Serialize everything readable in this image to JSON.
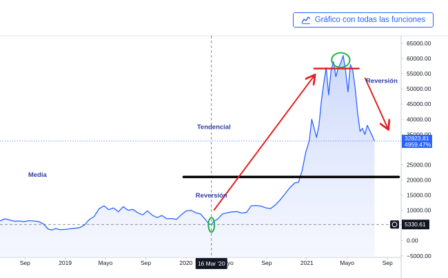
{
  "header": {
    "full_chart_button": "Gráfico con todas las funciones"
  },
  "chart_data": {
    "type": "area",
    "y_ticks": [
      65000,
      60000,
      55000,
      50000,
      45000,
      40000,
      35000,
      25000,
      20000,
      15000,
      10000,
      5000,
      0,
      -5000
    ],
    "y_tick_labels": [
      "65000.00",
      "60000.00",
      "55000.00",
      "50000.00",
      "45000.00",
      "40000.00",
      "35000.00",
      "25000.00",
      "20000.00",
      "15000.00",
      "10000.00",
      "5000.00",
      "0.00",
      "−5000.00"
    ],
    "ylim": [
      -5500,
      67500
    ],
    "x_ticks": [
      {
        "t": 2018.667,
        "label": "Sep"
      },
      {
        "t": 2019.0,
        "label": "2019"
      },
      {
        "t": 2019.333,
        "label": "Mayo"
      },
      {
        "t": 2019.667,
        "label": "Sep"
      },
      {
        "t": 2020.0,
        "label": "2020"
      },
      {
        "t": 2020.333,
        "label": "Mayo"
      },
      {
        "t": 2020.667,
        "label": "Sep"
      },
      {
        "t": 2021.0,
        "label": "2021"
      },
      {
        "t": 2021.333,
        "label": "Mayo"
      },
      {
        "t": 2021.667,
        "label": "Sep"
      }
    ],
    "xlim": [
      2018.46,
      2021.78
    ],
    "crosshair": {
      "t": 2020.21,
      "label": "16 Mar '20"
    },
    "last_value": {
      "price": "32823.81",
      "change": "4959.47%",
      "value": 32823.81
    },
    "crosshair_value": {
      "price": "5330.61",
      "value": 5330.61
    },
    "x": [
      2018.46,
      2018.5,
      2018.54,
      2018.58,
      2018.62,
      2018.66,
      2018.7,
      2018.74,
      2018.78,
      2018.82,
      2018.86,
      2018.89,
      2018.92,
      2018.96,
      2019.0,
      2019.04,
      2019.08,
      2019.12,
      2019.16,
      2019.2,
      2019.24,
      2019.28,
      2019.32,
      2019.36,
      2019.4,
      2019.44,
      2019.48,
      2019.52,
      2019.56,
      2019.6,
      2019.64,
      2019.68,
      2019.72,
      2019.76,
      2019.8,
      2019.84,
      2019.88,
      2019.92,
      2019.96,
      2020.0,
      2020.04,
      2020.08,
      2020.12,
      2020.16,
      2020.19,
      2020.21,
      2020.23,
      2020.26,
      2020.3,
      2020.34,
      2020.38,
      2020.42,
      2020.46,
      2020.5,
      2020.54,
      2020.58,
      2020.62,
      2020.66,
      2020.7,
      2020.74,
      2020.78,
      2020.82,
      2020.86,
      2020.9,
      2020.93,
      2020.96,
      2020.99,
      2021.02,
      2021.04,
      2021.06,
      2021.08,
      2021.1,
      2021.12,
      2021.14,
      2021.16,
      2021.18,
      2021.2,
      2021.22,
      2021.24,
      2021.26,
      2021.28,
      2021.3,
      2021.32,
      2021.34,
      2021.36,
      2021.38,
      2021.4,
      2021.42,
      2021.44,
      2021.46,
      2021.48,
      2021.5,
      2021.53,
      2021.56
    ],
    "values": [
      6500,
      7200,
      6800,
      6400,
      6500,
      6300,
      6600,
      6500,
      6300,
      5500,
      3800,
      3500,
      4000,
      3600,
      3700,
      3900,
      4100,
      4300,
      5200,
      7000,
      8000,
      10500,
      11500,
      10200,
      10800,
      9500,
      11200,
      10000,
      10300,
      9200,
      8500,
      9800,
      8400,
      7600,
      8300,
      7200,
      7300,
      7000,
      8500,
      9800,
      10000,
      9200,
      8800,
      7000,
      5500,
      5330,
      6500,
      7000,
      8800,
      9200,
      9500,
      9600,
      9100,
      9300,
      11500,
      11600,
      11400,
      10800,
      10600,
      11800,
      13500,
      15500,
      17500,
      19000,
      19200,
      23000,
      29000,
      33000,
      40000,
      37000,
      34000,
      38000,
      46000,
      52000,
      57000,
      48000,
      56000,
      59000,
      54000,
      57000,
      58500,
      61000,
      56000,
      49000,
      58000,
      56000,
      50000,
      42000,
      36000,
      37000,
      35000,
      38000,
      35500,
      32823.81
    ],
    "annotations": [
      {
        "text": "Tendencial",
        "t": 2020.23,
        "y": 36800
      },
      {
        "text": "Media",
        "t": 2018.77,
        "y": 21000
      },
      {
        "text": "Reversión",
        "t": 2020.21,
        "y": 14200
      },
      {
        "text": "Reversión",
        "t": 2021.62,
        "y": 52000
      }
    ],
    "hlines": [
      {
        "y": 21000,
        "t0": 2019.98,
        "t1": 2021.76,
        "color": "#000000",
        "width": 3.5
      },
      {
        "y": 56700,
        "t0": 2021.06,
        "t1": 2021.43,
        "color": "#e02020",
        "width": 2.5
      }
    ],
    "arrows": [
      {
        "t0": 2020.23,
        "y0": 10000,
        "t1": 2021.06,
        "y1": 54300,
        "color": "#e02020"
      },
      {
        "t0": 2021.48,
        "y0": 53700,
        "t1": 2021.67,
        "y1": 37000,
        "color": "#e02020"
      }
    ],
    "ellipses": [
      {
        "t": 2020.21,
        "y": 5200,
        "rt": 0.025,
        "ry": 2400,
        "color": "#1db34a"
      },
      {
        "t": 2021.28,
        "y": 59500,
        "rt": 0.075,
        "ry": 2400,
        "color": "#1db34a"
      }
    ],
    "colors": {
      "line": "#2962ff",
      "fill": "#dde6fb",
      "accent": "#2962ff"
    }
  }
}
